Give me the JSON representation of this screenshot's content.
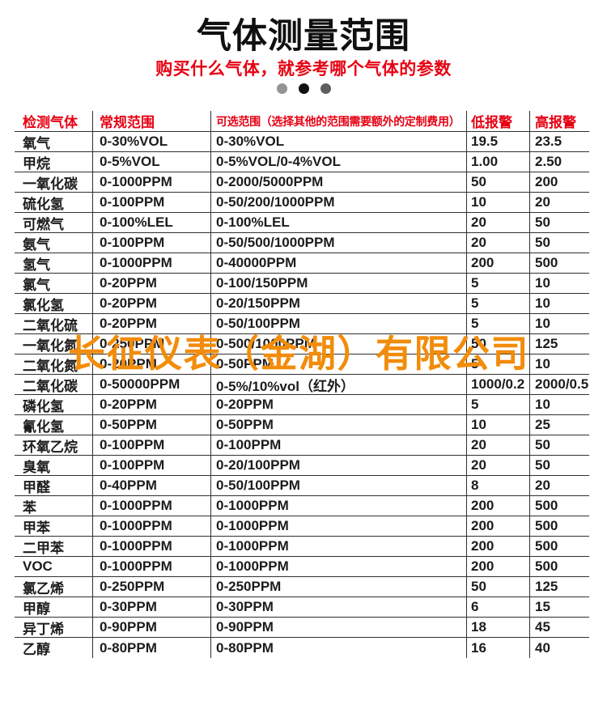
{
  "header": {
    "title": "气体测量范围",
    "subtitle": "购买什么气体，就参考哪个气体的参数",
    "dot_colors": [
      "#949494",
      "#111111",
      "#5e5e5e"
    ]
  },
  "watermark": {
    "text": "长征仪表（金湖）有限公司",
    "color": "#f28c0a"
  },
  "table": {
    "header_color": "#e60012",
    "columns": [
      "检测气体",
      "常规范围",
      "可选范围（选择其他的范围需要额外的定制费用）",
      "低报警",
      "高报警"
    ],
    "rows": [
      {
        "gas": "氧气",
        "normal": "0-30%VOL",
        "optional": "0-30%VOL",
        "low": "19.5",
        "high": "23.5"
      },
      {
        "gas": "甲烷",
        "normal": "0-5%VOL",
        "optional": "0-5%VOL/0-4%VOL",
        "low": "1.00",
        "high": "2.50"
      },
      {
        "gas": "一氧化碳",
        "normal": "0-1000PPM",
        "optional": "0-2000/5000PPM",
        "low": "50",
        "high": "200"
      },
      {
        "gas": "硫化氢",
        "normal": "0-100PPM",
        "optional": "0-50/200/1000PPM",
        "low": "10",
        "high": "20"
      },
      {
        "gas": "可燃气",
        "normal": "0-100%LEL",
        "optional": "0-100%LEL",
        "low": "20",
        "high": "50"
      },
      {
        "gas": "氨气",
        "normal": "0-100PPM",
        "optional": "0-50/500/1000PPM",
        "low": "20",
        "high": "50"
      },
      {
        "gas": "氢气",
        "normal": "0-1000PPM",
        "optional": "0-40000PPM",
        "low": "200",
        "high": "500"
      },
      {
        "gas": "氯气",
        "normal": "0-20PPM",
        "optional": "0-100/150PPM",
        "low": "5",
        "high": "10"
      },
      {
        "gas": "氯化氢",
        "normal": "0-20PPM",
        "optional": "0-20/150PPM",
        "low": "5",
        "high": "10"
      },
      {
        "gas": "二氧化硫",
        "normal": "0-20PPM",
        "optional": "0-50/100PPM",
        "low": "5",
        "high": "10"
      },
      {
        "gas": "一氧化氮",
        "normal": "0-250PPM",
        "optional": "0-500/1000PPM",
        "low": "50",
        "high": "125"
      },
      {
        "gas": "二氧化氮",
        "normal": "0-20PPM",
        "optional": "0-50PPM",
        "low": "5",
        "high": "10"
      },
      {
        "gas": "二氧化碳",
        "normal": "0-50000PPM",
        "optional": "0-5%/10%vol（红外）",
        "low": "1000/0.2",
        "high": "2000/0.5"
      },
      {
        "gas": "磷化氢",
        "normal": "0-20PPM",
        "optional": "0-20PPM",
        "low": "5",
        "high": "10"
      },
      {
        "gas": "氰化氢",
        "normal": "0-50PPM",
        "optional": "0-50PPM",
        "low": "10",
        "high": "25"
      },
      {
        "gas": "环氧乙烷",
        "normal": "0-100PPM",
        "optional": "0-100PPM",
        "low": "20",
        "high": "50"
      },
      {
        "gas": "臭氧",
        "normal": "0-100PPM",
        "optional": "0-20/100PPM",
        "low": "20",
        "high": "50"
      },
      {
        "gas": "甲醛",
        "normal": "0-40PPM",
        "optional": "0-50/100PPM",
        "low": "8",
        "high": "20"
      },
      {
        "gas": "苯",
        "normal": "0-1000PPM",
        "optional": "0-1000PPM",
        "low": "200",
        "high": "500"
      },
      {
        "gas": "甲苯",
        "normal": "0-1000PPM",
        "optional": "0-1000PPM",
        "low": "200",
        "high": "500"
      },
      {
        "gas": "二甲苯",
        "normal": "0-1000PPM",
        "optional": "0-1000PPM",
        "low": "200",
        "high": "500"
      },
      {
        "gas": "VOC",
        "normal": "0-1000PPM",
        "optional": "0-1000PPM",
        "low": "200",
        "high": "500"
      },
      {
        "gas": "氯乙烯",
        "normal": "0-250PPM",
        "optional": "0-250PPM",
        "low": "50",
        "high": "125"
      },
      {
        "gas": "甲醇",
        "normal": "0-30PPM",
        "optional": "0-30PPM",
        "low": "6",
        "high": "15"
      },
      {
        "gas": "异丁烯",
        "normal": "0-90PPM",
        "optional": "0-90PPM",
        "low": "18",
        "high": "45"
      },
      {
        "gas": "乙醇",
        "normal": "0-80PPM",
        "optional": "0-80PPM",
        "low": "16",
        "high": "40"
      }
    ]
  }
}
